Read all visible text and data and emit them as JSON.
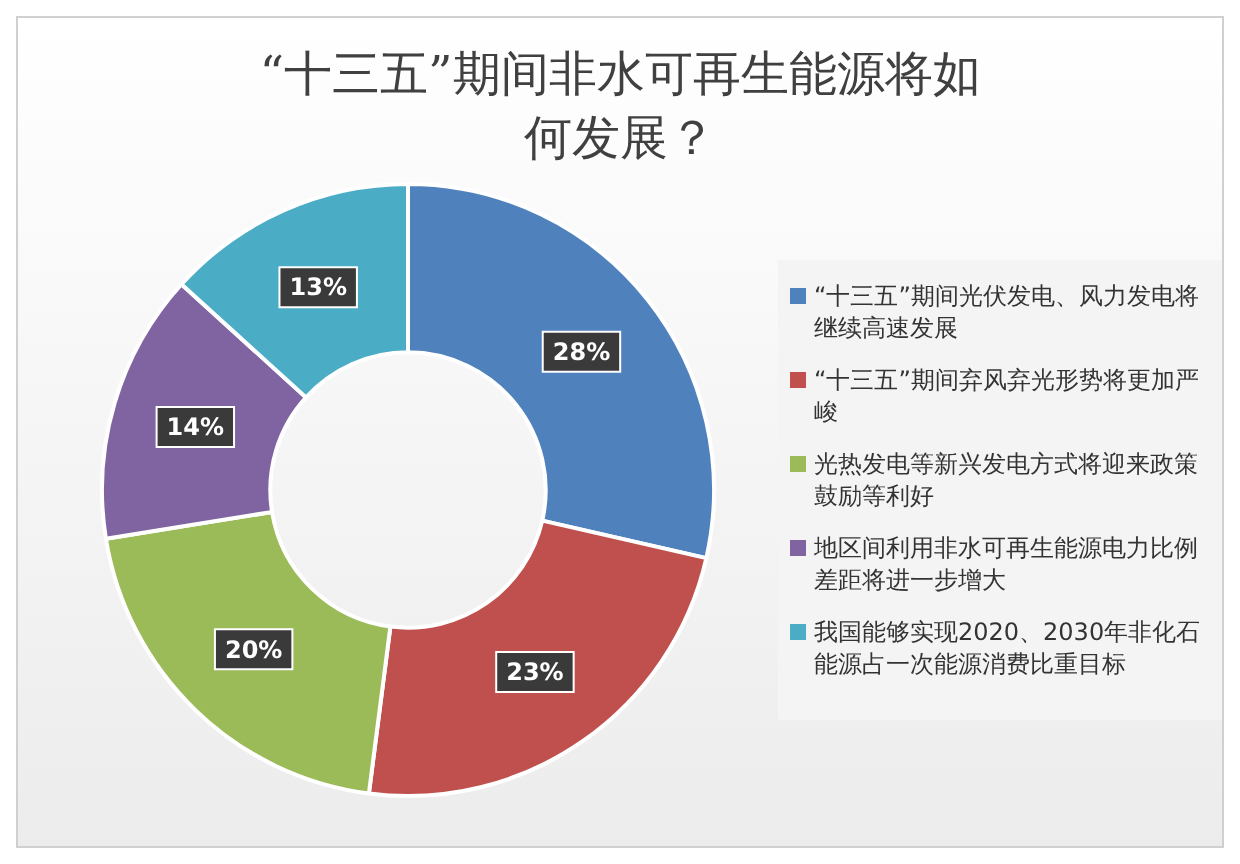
{
  "chart_data": {
    "type": "donut",
    "title": "“十三五”期间非水可再生能源将如何发展？",
    "categories": [
      "“十三五”期间光伏发电、风力发电将继续高速发展",
      "“十三五”期间弃风弃光形势将更加严峻",
      "光热发电等新兴发电方式将迎来政策鼓励等利好",
      "地区间利用非水可再生能源电力比例差距将进一步增大",
      "我国能够实现2020、2030年非化石能源占一次能源消费比重目标"
    ],
    "values": [
      28,
      23,
      20,
      14,
      13
    ],
    "value_labels": [
      "28%",
      "23%",
      "20%",
      "14%",
      "13%"
    ],
    "colors": [
      "#4f81bd",
      "#c0504d",
      "#9bbb59",
      "#8064a2",
      "#4bacc6"
    ],
    "legend": "right"
  }
}
